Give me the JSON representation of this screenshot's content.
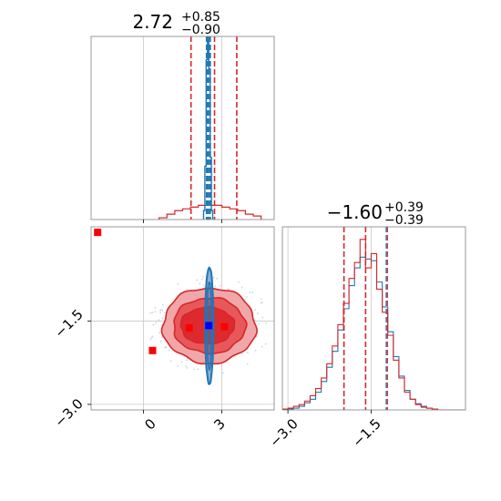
{
  "colors": {
    "red": "#d62728",
    "red_fill_light": "#f1a7a9",
    "red_fill_mid": "#e8585b",
    "red_fill_dark": "#dd2a2e",
    "blue": "#1f77b4",
    "marker_red": "#ff0000",
    "marker_blue": "#0000ff",
    "grid": "#c8c8c8",
    "frame": "#808080"
  },
  "chart_data": [
    {
      "panel": "top-left",
      "type": "histogram-1d",
      "title_value": "2.72",
      "title_upper": "+0.85",
      "title_lower": "−0.90",
      "xlim": [
        -2.0,
        5.0
      ],
      "xticks": [
        0,
        3
      ],
      "series": [
        {
          "color_key": "red",
          "bin_edges": [
            0.6,
            0.9,
            1.2,
            1.5,
            1.8,
            2.1,
            2.4,
            2.7,
            3.0,
            3.3,
            3.6,
            3.9,
            4.2,
            4.5
          ],
          "counts": [
            0.01,
            0.03,
            0.05,
            0.06,
            0.07,
            0.08,
            0.08,
            0.08,
            0.07,
            0.06,
            0.05,
            0.03,
            0.02
          ]
        },
        {
          "color_key": "blue",
          "bin_edges": [
            2.3,
            2.35,
            2.4,
            2.45,
            2.5,
            2.55,
            2.6,
            2.65
          ],
          "counts": [
            0.05,
            0.3,
            0.9,
            1.0,
            0.85,
            0.35,
            0.05
          ]
        }
      ],
      "quantile_lines": [
        {
          "color_key": "red",
          "values": [
            1.82,
            2.72,
            3.57
          ]
        },
        {
          "color_key": "blue",
          "values": [
            2.42,
            2.48,
            2.55
          ]
        }
      ]
    },
    {
      "panel": "bottom-left",
      "type": "contour-2d",
      "xlim": [
        -2.0,
        5.0
      ],
      "ylim": [
        -3.1,
        0.2
      ],
      "xticks": [
        0,
        3
      ],
      "yticks": [
        -1.5,
        -3.0
      ],
      "xtick_labels": [
        "0",
        "3"
      ],
      "ytick_labels": [
        "−1.5",
        "−3.0"
      ],
      "red_contour_levels": [
        {
          "fill_key": "red_fill_light",
          "center": [
            2.52,
            -1.58
          ],
          "radii": [
            3.55,
            1.36
          ]
        },
        {
          "fill_key": "red_fill_mid",
          "center": [
            2.52,
            -1.58
          ],
          "radii": [
            2.75,
            1.0
          ]
        },
        {
          "fill_key": "red_fill_dark",
          "center": [
            2.45,
            -1.58
          ],
          "radii": [
            2.05,
            0.66
          ]
        }
      ],
      "blue_contour": {
        "center": [
          2.52,
          -1.58
        ],
        "radii": [
          0.32,
          2.1
        ]
      },
      "markers": [
        {
          "color_key": "marker_red",
          "x": -1.75,
          "y": 0.1
        },
        {
          "color_key": "marker_red",
          "x": 0.35,
          "y": -2.03
        },
        {
          "color_key": "marker_red",
          "x": 1.75,
          "y": -1.62
        },
        {
          "color_key": "marker_red",
          "x": 3.1,
          "y": -1.6
        },
        {
          "color_key": "marker_blue",
          "x": 2.5,
          "y": -1.58
        }
      ]
    },
    {
      "panel": "bottom-right",
      "type": "histogram-1d",
      "title_value": "−1.60",
      "title_upper": "+0.39",
      "title_lower": "−0.39",
      "xlim": [
        -3.1,
        0.2
      ],
      "xticks": [
        -3.0,
        -1.5
      ],
      "xtick_labels": [
        "−3.0",
        "−1.5"
      ],
      "bin_edges": [
        -3.1,
        -3.0,
        -2.9,
        -2.8,
        -2.7,
        -2.6,
        -2.5,
        -2.4,
        -2.3,
        -2.2,
        -2.1,
        -2.0,
        -1.9,
        -1.8,
        -1.7,
        -1.6,
        -1.5,
        -1.4,
        -1.3,
        -1.2,
        -1.1,
        -1.0,
        -0.9,
        -0.8,
        -0.7,
        -0.6,
        -0.5,
        -0.4,
        -0.3,
        -0.2,
        -0.1,
        0.0,
        0.1,
        0.2
      ],
      "series": [
        {
          "color_key": "blue",
          "counts": [
            0,
            0.005,
            0.01,
            0.02,
            0.04,
            0.06,
            0.1,
            0.16,
            0.24,
            0.33,
            0.45,
            0.57,
            0.7,
            0.8,
            0.86,
            0.85,
            0.84,
            0.72,
            0.58,
            0.44,
            0.3,
            0.19,
            0.11,
            0.06,
            0.035,
            0.02,
            0.01,
            0.005,
            0,
            0,
            0,
            0,
            0
          ]
        },
        {
          "color_key": "red",
          "counts": [
            0.005,
            0.01,
            0.02,
            0.03,
            0.05,
            0.08,
            0.12,
            0.18,
            0.26,
            0.36,
            0.48,
            0.6,
            0.74,
            0.83,
            0.96,
            0.8,
            0.88,
            0.68,
            0.55,
            0.42,
            0.28,
            0.18,
            0.1,
            0.06,
            0.03,
            0.015,
            0.01,
            0.005,
            0,
            0,
            0,
            0,
            0
          ]
        }
      ],
      "quantile_lines": [
        {
          "color_key": "red",
          "values": [
            -1.99,
            -1.6,
            -1.21
          ]
        },
        {
          "color_key": "blue",
          "values": [
            -1.23
          ]
        }
      ]
    }
  ]
}
